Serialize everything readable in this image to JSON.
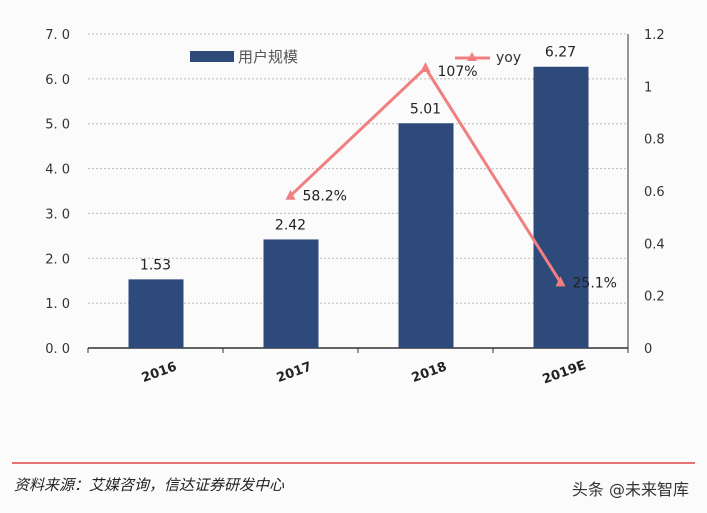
{
  "chart_data": {
    "type": "bar+line",
    "categories": [
      "2016",
      "2017",
      "2018",
      "2019E"
    ],
    "series": [
      {
        "name": "用户规模",
        "type": "bar",
        "axis": "left",
        "values": [
          1.53,
          2.42,
          5.01,
          6.27
        ],
        "labels": [
          "1.53",
          "2.42",
          "5.01",
          "6.27"
        ],
        "color": "#2e4a7a"
      },
      {
        "name": "yoy",
        "type": "line",
        "axis": "right",
        "x": [
          "2017",
          "2018",
          "2019E"
        ],
        "values": [
          0.582,
          1.07,
          0.251
        ],
        "labels": [
          "58.2%",
          "107%",
          "25.1%"
        ],
        "color": "#f08080"
      }
    ],
    "left_axis": {
      "ylim": [
        0,
        7
      ],
      "ticks": [
        "0.0",
        "1.0",
        "2.0",
        "3.0",
        "4.0",
        "5.0",
        "6.0",
        "7.0"
      ]
    },
    "right_axis": {
      "ylim": [
        0,
        1.2
      ],
      "ticks": [
        "0",
        "0.2",
        "0.4",
        "0.6",
        "0.8",
        "1",
        "1.2"
      ]
    },
    "grid": true,
    "legend": "top"
  },
  "footer": {
    "source": "资料来源：艾媒咨询，信达证券研发中心",
    "watermark": "头条 @未来智库"
  }
}
